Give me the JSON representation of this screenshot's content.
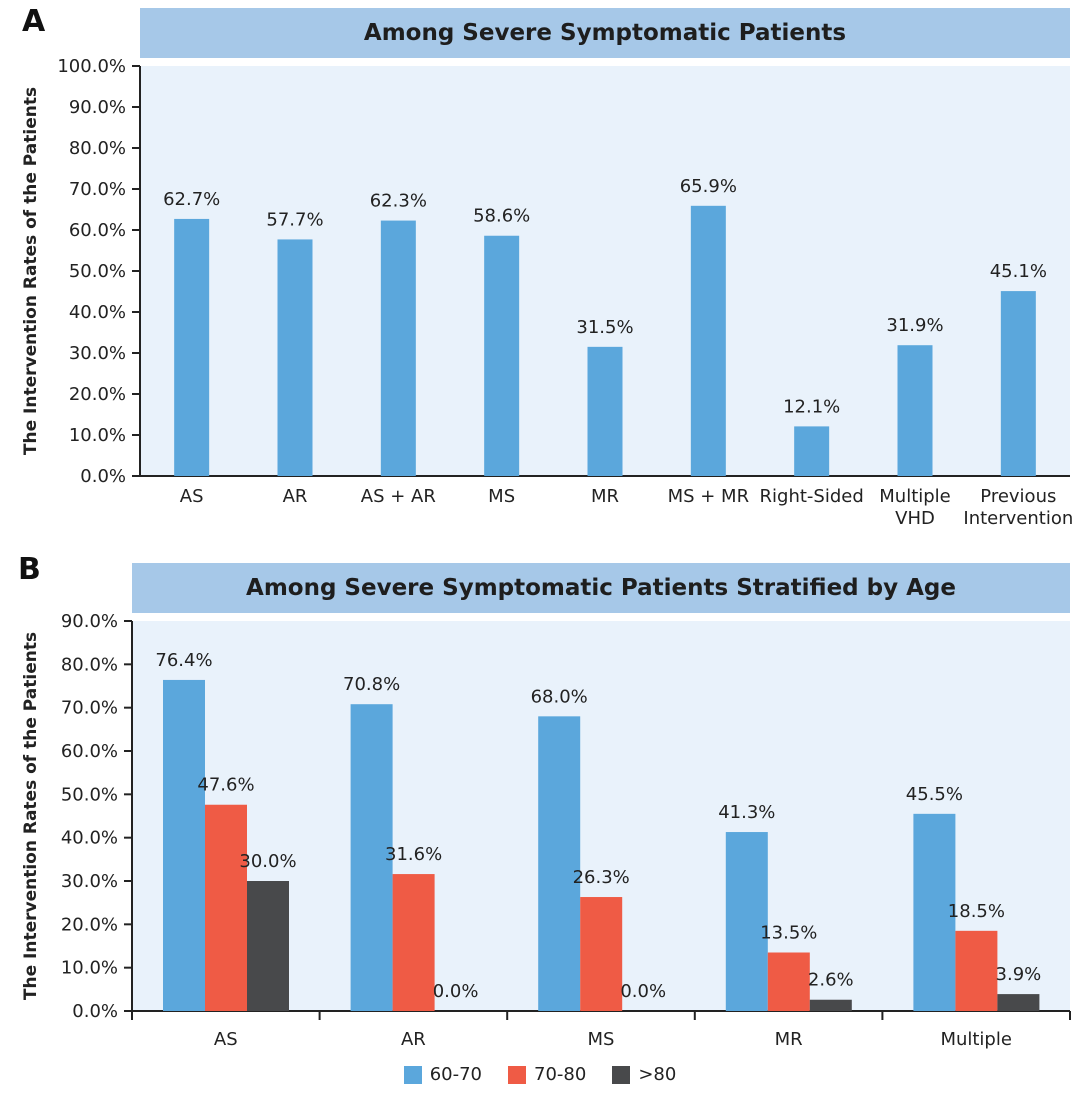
{
  "panel_a": {
    "letter": "A",
    "title": "Among Severe Symptomatic Patients"
  },
  "panel_b": {
    "letter": "B",
    "title": "Among Severe Symptomatic Patients Stratified by Age"
  },
  "colors": {
    "title_bar": "#a6c8e8",
    "plot_background": "#e9f2fb",
    "series_60_70": "#5ba7dc",
    "series_70_80": "#ef5b45",
    "series_gt80": "#48494b"
  },
  "legend": [
    {
      "label": "60-70",
      "color": "#5ba7dc"
    },
    {
      "label": "70-80",
      "color": "#ef5b45"
    },
    {
      "label": ">80",
      "color": "#48494b"
    }
  ],
  "chart_data": [
    {
      "type": "bar",
      "title": "Among Severe Symptomatic Patients",
      "ylabel": "The Intervention Rates of the Patients",
      "xlabel": "",
      "ylim": [
        0,
        100
      ],
      "yticks": [
        "0.0%",
        "10.0%",
        "20.0%",
        "30.0%",
        "40.0%",
        "50.0%",
        "60.0%",
        "70.0%",
        "80.0%",
        "90.0%",
        "100.0%"
      ],
      "categories": [
        "AS",
        "AR",
        "AS + AR",
        "MS",
        "MR",
        "MS + MR",
        "Right-Sided",
        "Multiple\nVHD",
        "Previous\nIntervention"
      ],
      "values": [
        62.7,
        57.7,
        62.3,
        58.6,
        31.5,
        65.9,
        12.1,
        31.9,
        45.1
      ],
      "data_labels": [
        "62.7%",
        "57.7%",
        "62.3%",
        "58.6%",
        "31.5%",
        "65.9%",
        "12.1%",
        "31.9%",
        "45.1%"
      ],
      "grid": false,
      "color": "#5ba7dc"
    },
    {
      "type": "bar",
      "title": "Among Severe Symptomatic Patients Stratified by Age",
      "ylabel": "The Intervention Rates of the Patients",
      "xlabel": "",
      "ylim": [
        0,
        90
      ],
      "yticks": [
        "0.0%",
        "10.0%",
        "20.0%",
        "30.0%",
        "40.0%",
        "50.0%",
        "60.0%",
        "70.0%",
        "80.0%",
        "90.0%"
      ],
      "categories": [
        "AS",
        "AR",
        "MS",
        "MR",
        "Multiple"
      ],
      "series": [
        {
          "name": "60-70",
          "color": "#5ba7dc",
          "values": [
            76.4,
            70.8,
            68.0,
            41.3,
            45.5
          ],
          "data_labels": [
            "76.4%",
            "70.8%",
            "68.0%",
            "41.3%",
            "45.5%"
          ]
        },
        {
          "name": "70-80",
          "color": "#ef5b45",
          "values": [
            47.6,
            31.6,
            26.3,
            13.5,
            18.5
          ],
          "data_labels": [
            "47.6%",
            "31.6%",
            "26.3%",
            "13.5%",
            "18.5%"
          ]
        },
        {
          "name": ">80",
          "color": "#48494b",
          "values": [
            30.0,
            0.0,
            0.0,
            2.6,
            3.9
          ],
          "data_labels": [
            "30.0%",
            "0.0%",
            "0.0%",
            "2.6%",
            "3.9%"
          ]
        }
      ],
      "grid": false,
      "legend_position": "bottom-center"
    }
  ]
}
